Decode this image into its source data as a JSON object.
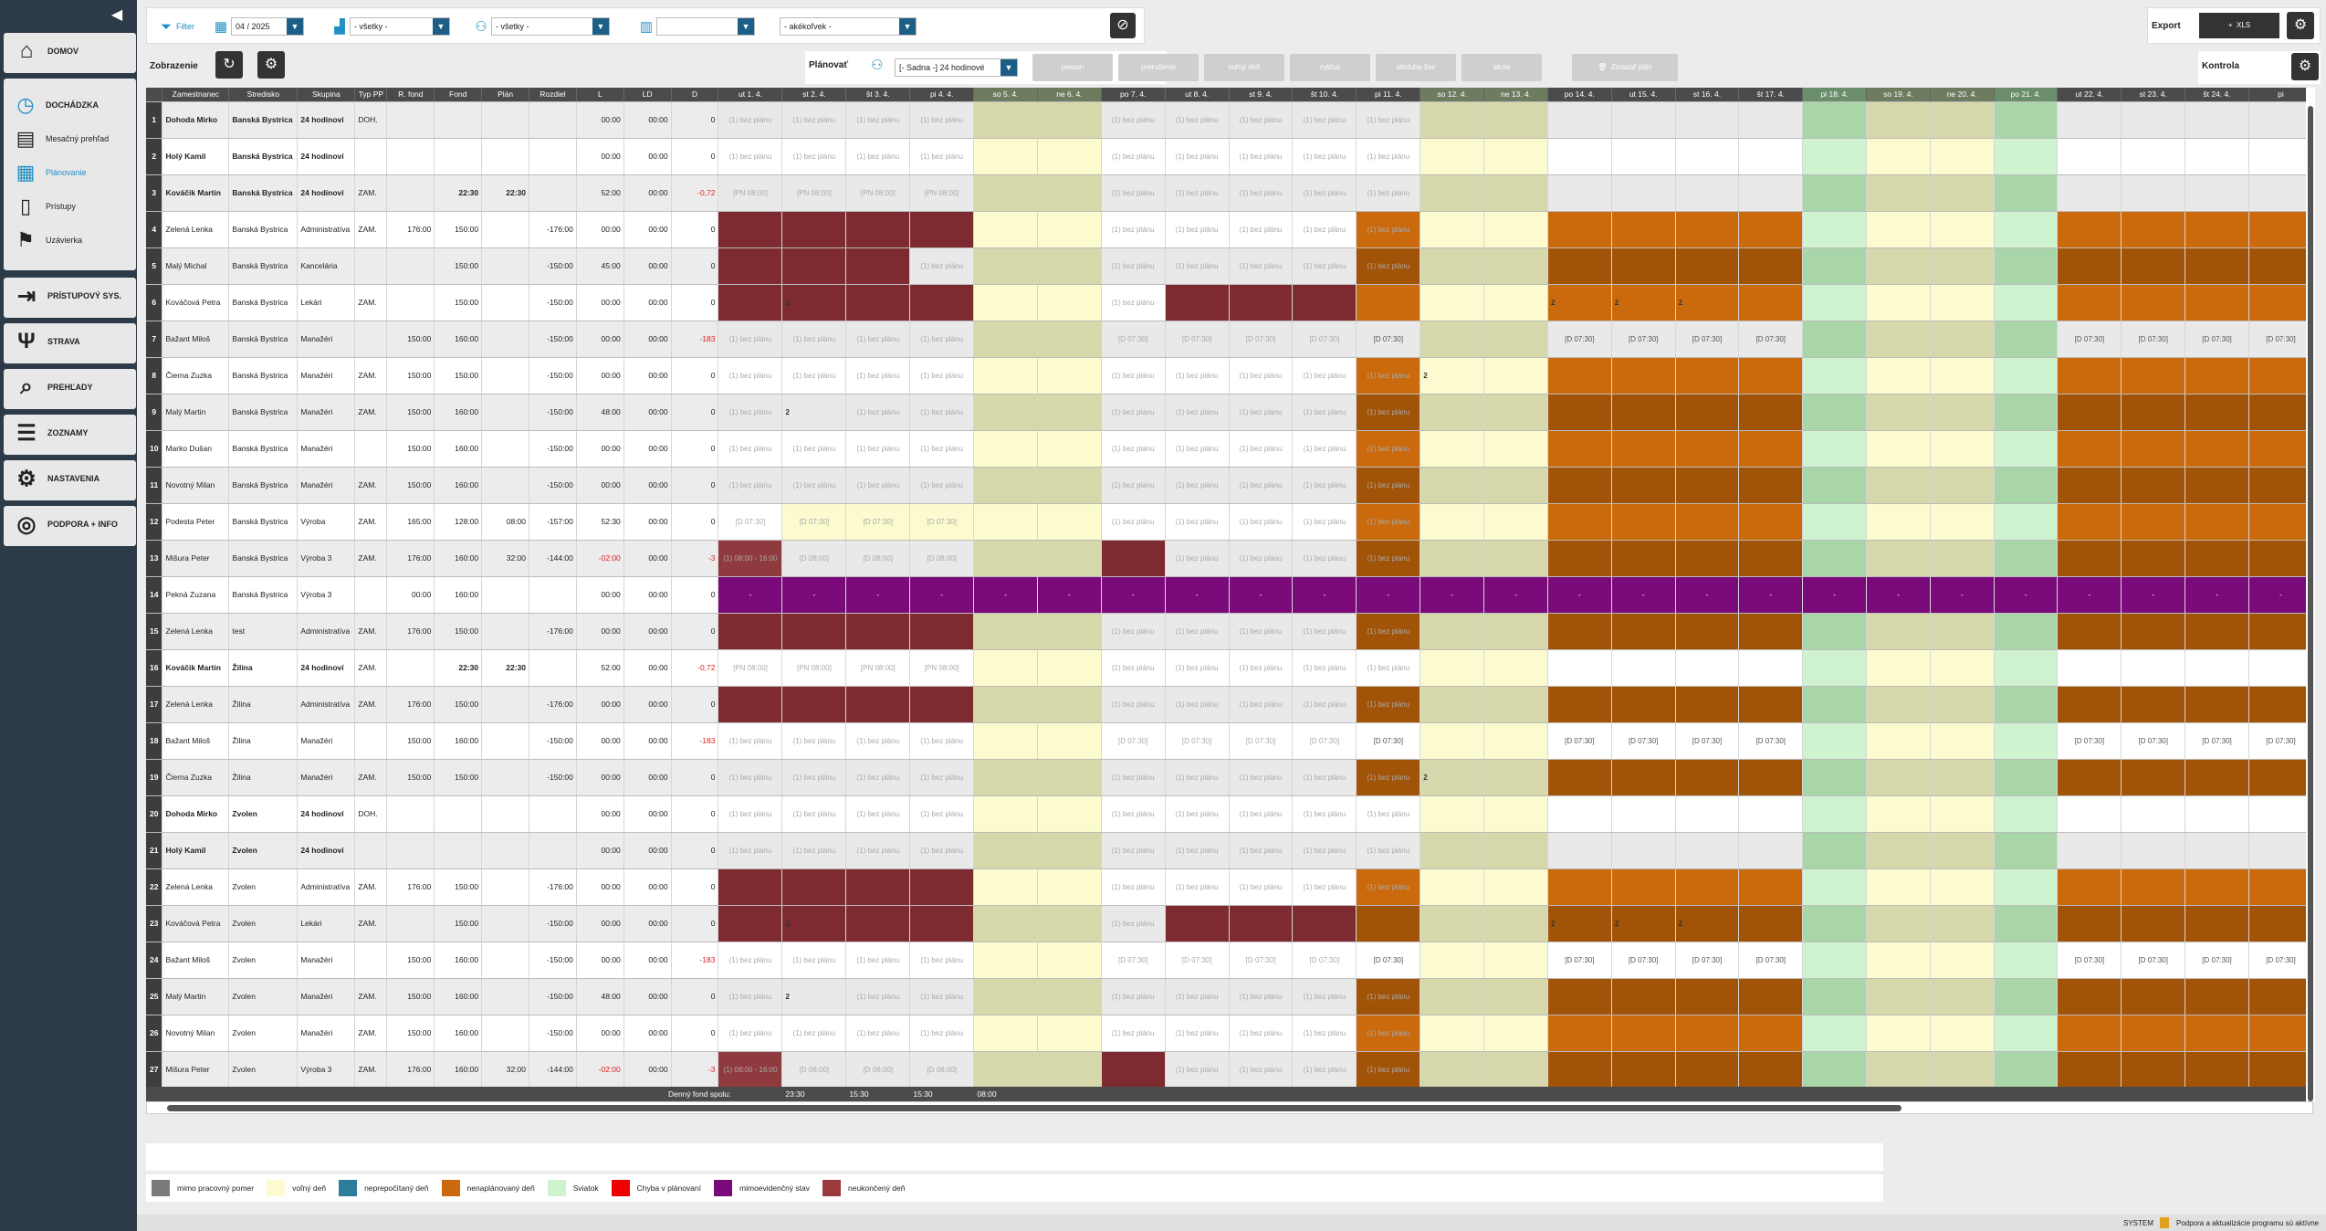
{
  "sidebar": {
    "home": "DOMOV",
    "sub": [
      {
        "label": "DOCHÁDZKA",
        "icon": "clock-icon"
      },
      {
        "label": "Mesačný prehľad",
        "icon": "book-icon"
      },
      {
        "label": "Plánovanie",
        "icon": "calendar-icon"
      },
      {
        "label": "Prístupy",
        "icon": "door-icon"
      },
      {
        "label": "Uzávierka",
        "icon": "flag-icon"
      }
    ],
    "main": [
      {
        "label": "PRÍSTUPOVÝ SYS.",
        "icon": "login-icon"
      },
      {
        "label": "STRAVA",
        "icon": "fork-knife-icon"
      },
      {
        "label": "PREHĽADY",
        "icon": "search-icon"
      },
      {
        "label": "ZOZNAMY",
        "icon": "list-icon"
      },
      {
        "label": "NASTAVENIA",
        "icon": "gear-icon"
      },
      {
        "label": "PODPORA + INFO",
        "icon": "lifebuoy-icon"
      }
    ]
  },
  "filter": {
    "label": "Filter",
    "period": "04 / 2025",
    "location": "- všetky -",
    "people": "- všetky -",
    "calendar": "",
    "role": "- akékoľvek -"
  },
  "export": {
    "label": "Export",
    "xls": "XLS"
  },
  "bar2": {
    "zobrazenie": "Zobrazenie",
    "planovat": "Plánovať",
    "plan_select": "[- Sadna -] 24 hodinové",
    "buttons": [
      "presun",
      "prerušenie",
      "voľný deň",
      "cyklus",
      "obsluha šav",
      "akcia"
    ],
    "save": "Zmazať plán",
    "kontrola": "Kontrola"
  },
  "columns": [
    "Zamestnanec",
    "Stredisko",
    "Skupina",
    "Typ PP",
    "R. fond",
    "Fond",
    "Plán",
    "Rozdiel",
    "L",
    "LD",
    "D"
  ],
  "days": [
    "ut 1. 4.",
    "st 2. 4.",
    "št 3. 4.",
    "pi 4. 4.",
    "so 5. 4.",
    "ne 6. 4.",
    "po 7. 4.",
    "ut 8. 4.",
    "st 9. 4.",
    "št 10. 4.",
    "pi 11. 4.",
    "so 12. 4.",
    "ne 13. 4.",
    "po 14. 4.",
    "ut 15. 4.",
    "st 16. 4.",
    "št 17. 4.",
    "pi 18. 4.",
    "so 19. 4.",
    "ne 20. 4.",
    "po 21. 4.",
    "ut 22. 4.",
    "st 23. 4.",
    "št 24. 4.",
    "pi"
  ],
  "rows": [
    {
      "n": "1",
      "name": "Dohoda Mirko",
      "str": "Banská Bystrica",
      "grp": "24 hodinoví",
      "typ": "DOH.",
      "rf": "",
      "f": "",
      "p": "",
      "r": "",
      "l": "00:00",
      "ld": "00:00",
      "d": "0",
      "bold": true,
      "k": "A"
    },
    {
      "n": "2",
      "name": "Holý Kamil",
      "str": "Banská Bystrica",
      "grp": "24 hodinoví",
      "typ": "",
      "rf": "",
      "f": "",
      "p": "",
      "r": "",
      "l": "00:00",
      "ld": "00:00",
      "d": "0",
      "bold": true,
      "k": "A"
    },
    {
      "n": "3",
      "name": "Kováčik Martin",
      "str": "Banská Bystrica",
      "grp": "24 hodinoví",
      "typ": "ZAM.",
      "rf": "",
      "f": "22:30",
      "p": "22:30",
      "r": "",
      "l": "52:00",
      "ld": "00:00",
      "d": "-0,72",
      "bold": true,
      "k": "B"
    },
    {
      "n": "4",
      "name": "Zelená Lenka",
      "str": "Banská Bystrica",
      "grp": "Administratíva",
      "typ": "ZAM.",
      "rf": "176:00",
      "f": "150:00",
      "p": "",
      "r": "-176:00",
      "l": "00:00",
      "ld": "00:00",
      "d": "0",
      "k": "C"
    },
    {
      "n": "5",
      "name": "Malý Michal",
      "str": "Banská Bystrica",
      "grp": "Kancelária",
      "typ": "",
      "rf": "",
      "f": "150:00",
      "p": "",
      "r": "-150:00",
      "l": "45:00",
      "ld": "00:00",
      "d": "0",
      "k": "D"
    },
    {
      "n": "6",
      "name": "Kováčová Petra",
      "str": "Banská Bystrica",
      "grp": "Lekári",
      "typ": "ZAM.",
      "rf": "",
      "f": "150:00",
      "p": "",
      "r": "-150:00",
      "l": "00:00",
      "ld": "00:00",
      "d": "0",
      "k": "E"
    },
    {
      "n": "7",
      "name": "Bažant Miloš",
      "str": "Banská Bystrica",
      "grp": "Manažéri",
      "typ": "",
      "rf": "150:00",
      "f": "160:00",
      "p": "",
      "r": "-150:00",
      "l": "00:00",
      "ld": "00:00",
      "d": "-183",
      "k": "F"
    },
    {
      "n": "8",
      "name": "Čierna Zuzka",
      "str": "Banská Bystrica",
      "grp": "Manažéri",
      "typ": "ZAM.",
      "rf": "150:00",
      "f": "150:00",
      "p": "",
      "r": "-150:00",
      "l": "00:00",
      "ld": "00:00",
      "d": "0",
      "k": "G"
    },
    {
      "n": "9",
      "name": "Malý Martin",
      "str": "Banská Bystrica",
      "grp": "Manažéri",
      "typ": "ZAM.",
      "rf": "150:00",
      "f": "160:00",
      "p": "",
      "r": "-150:00",
      "l": "48:00",
      "ld": "00:00",
      "d": "0",
      "k": "H"
    },
    {
      "n": "10",
      "name": "Marko Dušan",
      "str": "Banská Bystrica",
      "grp": "Manažéri",
      "typ": "",
      "rf": "150:00",
      "f": "160:00",
      "p": "",
      "r": "-150:00",
      "l": "00:00",
      "ld": "00:00",
      "d": "0",
      "k": "I"
    },
    {
      "n": "11",
      "name": "Novotný Milan",
      "str": "Banská Bystrica",
      "grp": "Manažéri",
      "typ": "ZAM.",
      "rf": "150:00",
      "f": "160:00",
      "p": "",
      "r": "-150:00",
      "l": "00:00",
      "ld": "00:00",
      "d": "0",
      "k": "I"
    },
    {
      "n": "12",
      "name": "Podesta Peter",
      "str": "Banská Bystrica",
      "grp": "Výroba",
      "typ": "ZAM.",
      "rf": "165:00",
      "f": "128:00",
      "p": "08:00",
      "r": "-157:00",
      "l": "52:30",
      "ld": "00:00",
      "d": "0",
      "k": "J"
    },
    {
      "n": "13",
      "name": "Mišura Peter",
      "str": "Banská Bystrica",
      "grp": "Výroba 3",
      "typ": "ZAM.",
      "rf": "176:00",
      "f": "160:00",
      "p": "32:00",
      "r": "-144:00",
      "l": "-02:00",
      "ld": "00:00",
      "d": "-3",
      "k": "K"
    },
    {
      "n": "14",
      "name": "Pekná Zuzana",
      "str": "Banská Bystrica",
      "grp": "Výroba 3",
      "typ": "",
      "rf": "00:00",
      "f": "160:00",
      "p": "",
      "r": "",
      "l": "00:00",
      "ld": "00:00",
      "d": "0",
      "k": "L"
    },
    {
      "n": "15",
      "name": "Zelená Lenka",
      "str": "test",
      "grp": "Administratíva",
      "typ": "ZAM.",
      "rf": "176:00",
      "f": "150:00",
      "p": "",
      "r": "-176:00",
      "l": "00:00",
      "ld": "00:00",
      "d": "0",
      "k": "C"
    },
    {
      "n": "16",
      "name": "Kováčik Martin",
      "str": "Žilina",
      "grp": "24 hodinoví",
      "typ": "ZAM.",
      "rf": "",
      "f": "22:30",
      "p": "22:30",
      "r": "",
      "l": "52:00",
      "ld": "00:00",
      "d": "-0,72",
      "bold": true,
      "k": "B"
    },
    {
      "n": "17",
      "name": "Zelená Lenka",
      "str": "Žilina",
      "grp": "Administratíva",
      "typ": "ZAM.",
      "rf": "176:00",
      "f": "150:00",
      "p": "",
      "r": "-176:00",
      "l": "00:00",
      "ld": "00:00",
      "d": "0",
      "k": "C"
    },
    {
      "n": "18",
      "name": "Bažant Miloš",
      "str": "Žilina",
      "grp": "Manažéri",
      "typ": "",
      "rf": "150:00",
      "f": "160:00",
      "p": "",
      "r": "-150:00",
      "l": "00:00",
      "ld": "00:00",
      "d": "-183",
      "k": "F"
    },
    {
      "n": "19",
      "name": "Čierna Zuzka",
      "str": "Žilina",
      "grp": "Manažéri",
      "typ": "ZAM.",
      "rf": "150:00",
      "f": "150:00",
      "p": "",
      "r": "-150:00",
      "l": "00:00",
      "ld": "00:00",
      "d": "0",
      "k": "G"
    },
    {
      "n": "20",
      "name": "Dohoda Mirko",
      "str": "Zvolen",
      "grp": "24 hodinoví",
      "typ": "DOH.",
      "rf": "",
      "f": "",
      "p": "",
      "r": "",
      "l": "00:00",
      "ld": "00:00",
      "d": "0",
      "bold": true,
      "k": "A"
    },
    {
      "n": "21",
      "name": "Holý Kamil",
      "str": "Zvolen",
      "grp": "24 hodinoví",
      "typ": "",
      "rf": "",
      "f": "",
      "p": "",
      "r": "",
      "l": "00:00",
      "ld": "00:00",
      "d": "0",
      "bold": true,
      "k": "A"
    },
    {
      "n": "22",
      "name": "Zelená Lenka",
      "str": "Zvolen",
      "grp": "Administratíva",
      "typ": "ZAM.",
      "rf": "176:00",
      "f": "150:00",
      "p": "",
      "r": "-176:00",
      "l": "00:00",
      "ld": "00:00",
      "d": "0",
      "k": "C"
    },
    {
      "n": "23",
      "name": "Kováčová Petra",
      "str": "Zvolen",
      "grp": "Lekári",
      "typ": "ZAM.",
      "rf": "",
      "f": "150:00",
      "p": "",
      "r": "-150:00",
      "l": "00:00",
      "ld": "00:00",
      "d": "0",
      "k": "E"
    },
    {
      "n": "24",
      "name": "Bažant Miloš",
      "str": "Zvolen",
      "grp": "Manažéri",
      "typ": "",
      "rf": "150:00",
      "f": "160:00",
      "p": "",
      "r": "-150:00",
      "l": "00:00",
      "ld": "00:00",
      "d": "-183",
      "k": "F"
    },
    {
      "n": "25",
      "name": "Malý Martin",
      "str": "Zvolen",
      "grp": "Manažéri",
      "typ": "ZAM.",
      "rf": "150:00",
      "f": "160:00",
      "p": "",
      "r": "-150:00",
      "l": "48:00",
      "ld": "00:00",
      "d": "0",
      "k": "H"
    },
    {
      "n": "26",
      "name": "Novotný Milan",
      "str": "Zvolen",
      "grp": "Manažéri",
      "typ": "ZAM.",
      "rf": "150:00",
      "f": "160:00",
      "p": "",
      "r": "-150:00",
      "l": "00:00",
      "ld": "00:00",
      "d": "0",
      "k": "I"
    },
    {
      "n": "27",
      "name": "Mišura Peter",
      "str": "Zvolen",
      "grp": "Výroba 3",
      "typ": "ZAM.",
      "rf": "176:00",
      "f": "160:00",
      "p": "32:00",
      "r": "-144:00",
      "l": "-02:00",
      "ld": "00:00",
      "d": "-3",
      "k": "K"
    }
  ],
  "footer": {
    "label": "Denný fond spolu:",
    "vals": [
      "23:30",
      "15:30",
      "15:30",
      "08:00"
    ]
  },
  "legend": [
    {
      "color": "#7a7a7a",
      "label": "mimo pracovný pomer"
    },
    {
      "color": "#fbfbcf",
      "label": "voľný deň"
    },
    {
      "color": "#2d7d9a",
      "label": "neprepočítaný deň"
    },
    {
      "color": "#cb6a0c",
      "label": "nenaplánovaný deň"
    },
    {
      "color": "#cff2cf",
      "label": "Sviatok"
    },
    {
      "color": "#ee0000",
      "label": "Chyba v plánovaní"
    },
    {
      "color": "#7a0a7a",
      "label": "mimoevidenčný stav"
    },
    {
      "color": "#9a3a3e",
      "label": "neukončený deň"
    }
  ],
  "status": {
    "user": "SYSTEM",
    "msg": "Podpora a aktualizácie programu sú aktívne"
  }
}
